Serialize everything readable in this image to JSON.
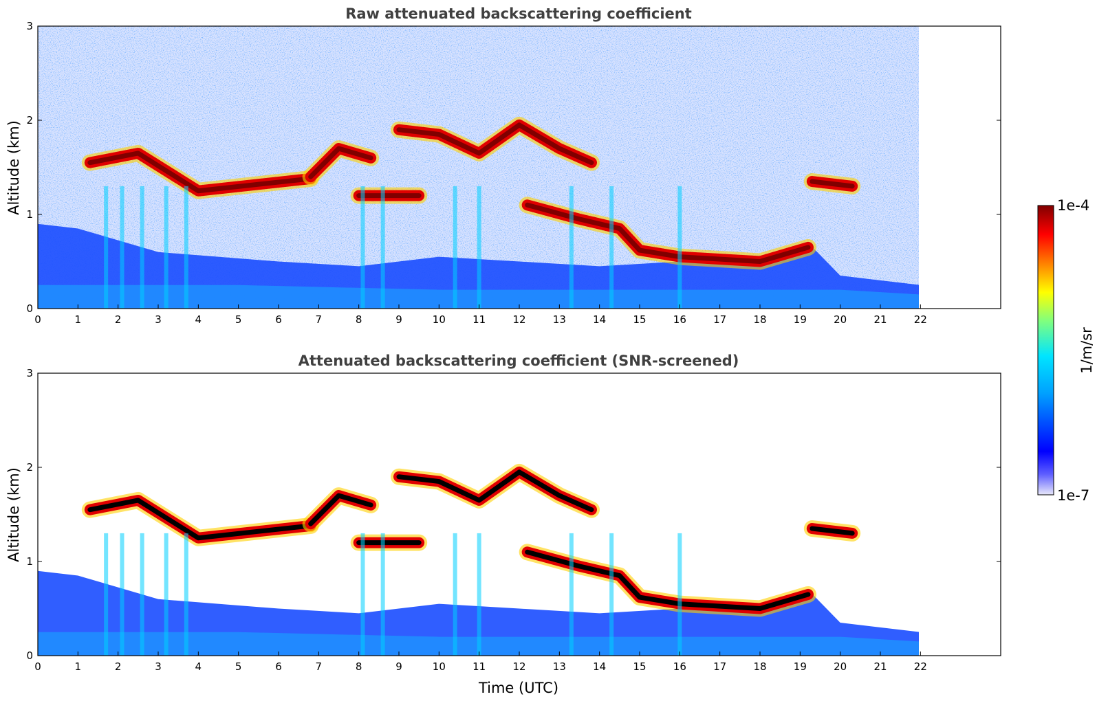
{
  "chart_data": [
    {
      "type": "heatmap",
      "title": "Raw attenuated backscattering coefficient",
      "xlabel": "",
      "ylabel": "Altitude (km)",
      "xlim": [
        0,
        24
      ],
      "ylim": [
        0,
        3
      ],
      "data_xrange": [
        0,
        22
      ],
      "x_ticks": [
        "0",
        "1",
        "2",
        "3",
        "4",
        "5",
        "6",
        "7",
        "8",
        "9",
        "10",
        "11",
        "12",
        "13",
        "14",
        "15",
        "16",
        "17",
        "18",
        "19",
        "20",
        "21",
        "22"
      ],
      "y_ticks": [
        "0",
        "1",
        "2",
        "3"
      ],
      "screened": false,
      "layers": [
        {
          "x": [
            1.3,
            2.5,
            4.0,
            6.8
          ],
          "y": [
            1.55,
            1.65,
            1.25,
            1.38
          ]
        },
        {
          "x": [
            6.8,
            7.5,
            8.3
          ],
          "y": [
            1.4,
            1.7,
            1.6
          ]
        },
        {
          "x": [
            8.0,
            9.5
          ],
          "y": [
            1.2,
            1.2
          ]
        },
        {
          "x": [
            9.0,
            10.0,
            11.0,
            12.0,
            13.0,
            13.8
          ],
          "y": [
            1.9,
            1.85,
            1.65,
            1.95,
            1.7,
            1.55
          ]
        },
        {
          "x": [
            12.2,
            13.5,
            14.5,
            15.0,
            16.0,
            18.0,
            19.2
          ],
          "y": [
            1.1,
            0.95,
            0.85,
            0.62,
            0.55,
            0.5,
            0.65
          ]
        },
        {
          "x": [
            19.3,
            20.3
          ],
          "y": [
            1.35,
            1.3
          ]
        }
      ]
    },
    {
      "type": "heatmap",
      "title": "Attenuated backscattering coefficient (SNR-screened)",
      "xlabel": "Time (UTC)",
      "ylabel": "Altitude (km)",
      "xlim": [
        0,
        24
      ],
      "ylim": [
        0,
        3
      ],
      "data_xrange": [
        0,
        22
      ],
      "x_ticks": [
        "0",
        "1",
        "2",
        "3",
        "4",
        "5",
        "6",
        "7",
        "8",
        "9",
        "10",
        "11",
        "12",
        "13",
        "14",
        "15",
        "16",
        "17",
        "18",
        "19",
        "20",
        "21",
        "22"
      ],
      "y_ticks": [
        "0",
        "1",
        "2",
        "3"
      ],
      "screened": true
    }
  ],
  "colorbar": {
    "label": "1/m/sr",
    "max_label": "1e-4",
    "min_label": "1e-7",
    "scale": "log",
    "colors": [
      "#e8e8fa",
      "#0000ff",
      "#00a0ff",
      "#00e5ff",
      "#7fff7f",
      "#ffff00",
      "#ff8000",
      "#ff0000",
      "#800000"
    ]
  }
}
